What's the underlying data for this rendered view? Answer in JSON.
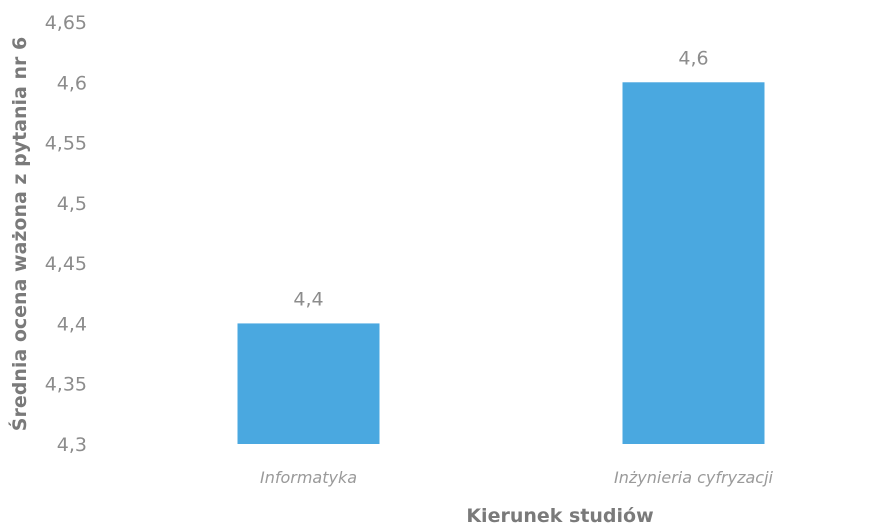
{
  "chart_data": {
    "type": "bar",
    "categories": [
      "Informatyka",
      "Inżynieria cyfryzacji"
    ],
    "values": [
      4.4,
      4.6
    ],
    "data_labels": [
      "4,4",
      "4,6"
    ],
    "ylim": [
      4.3,
      4.65
    ],
    "yticks": [
      4.3,
      4.35,
      4.4,
      4.45,
      4.5,
      4.55,
      4.6,
      4.65
    ],
    "ytick_labels": [
      "4,3",
      "4,35",
      "4,4",
      "4,45",
      "4,5",
      "4,55",
      "4,6",
      "4,65"
    ],
    "xlabel": "Kierunek studiów",
    "ylabel": "Średnia ocena ważona z pytania nr 6",
    "grid": false,
    "legend": "none",
    "bar_color": "#4aa8e0"
  }
}
